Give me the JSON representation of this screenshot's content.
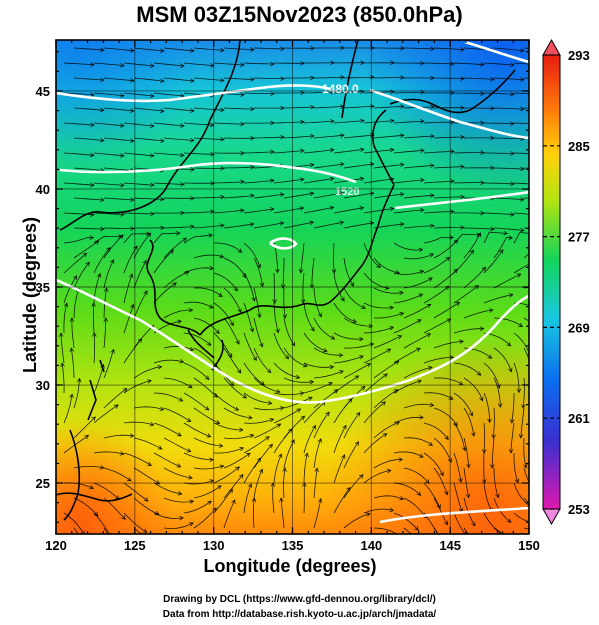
{
  "title": "MSM 03Z15Nov2023 (850.0hPa)",
  "axes": {
    "xlabel": "Longitude (degrees)",
    "ylabel": "Latitude  (degrees)",
    "xticks": [
      "120",
      "125",
      "130",
      "135",
      "140",
      "145",
      "150"
    ],
    "yticks": [
      "25",
      "30",
      "35",
      "40",
      "45"
    ]
  },
  "colorbar": {
    "ticks": [
      "293",
      "285",
      "277",
      "269",
      "261",
      "253"
    ],
    "min": 253,
    "max": 293
  },
  "contour_labels": [
    "1480.0",
    "1520"
  ],
  "credits": {
    "line1": "Drawing by DCL (https://www.gfd-dennou.org/library/dcl/)",
    "line2": "Data from http://database.rish.kyoto-u.ac.jp/arch/jmadata/"
  },
  "map_data": {
    "lon_range": [
      120,
      150
    ],
    "lat_range": [
      22.4,
      47.6
    ],
    "field": "temperature (K) shaded, wind streamlines, geopotential height contours",
    "colormap": [
      "#e0189a",
      "#3a2fd0",
      "#0a6cf0",
      "#19c8e0",
      "#14d45a",
      "#9be010",
      "#ffd20a",
      "#ff7a0a",
      "#e81e12"
    ]
  }
}
